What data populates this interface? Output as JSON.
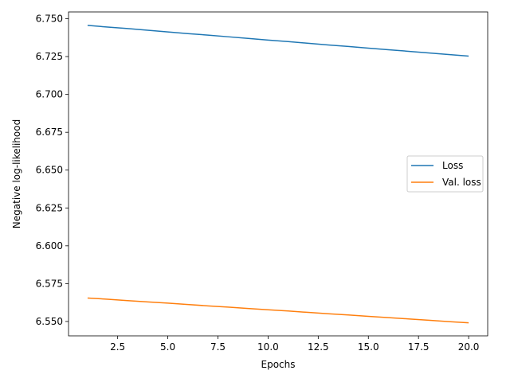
{
  "chart_data": {
    "type": "line",
    "title": "",
    "xlabel": "Epochs",
    "ylabel": "Negative log-likelihood",
    "xlim": [
      0.05,
      20.95
    ],
    "ylim": [
      6.5405,
      6.7545
    ],
    "xticks": [
      2.5,
      5.0,
      7.5,
      10.0,
      12.5,
      15.0,
      17.5,
      20.0
    ],
    "xtick_labels": [
      "2.5",
      "5.0",
      "7.5",
      "10.0",
      "12.5",
      "15.0",
      "17.5",
      "20.0"
    ],
    "yticks": [
      6.55,
      6.575,
      6.6,
      6.625,
      6.65,
      6.675,
      6.7,
      6.725,
      6.75
    ],
    "ytick_labels": [
      "6.550",
      "6.575",
      "6.600",
      "6.625",
      "6.650",
      "6.675",
      "6.700",
      "6.725",
      "6.750"
    ],
    "grid": false,
    "legend_position": "center-right",
    "series": [
      {
        "name": "Loss",
        "color": "#1f77b4",
        "x": [
          1,
          2,
          3,
          4,
          5,
          6,
          7,
          8,
          9,
          10,
          11,
          12,
          13,
          14,
          15,
          16,
          17,
          18,
          19,
          20
        ],
        "y": [
          6.7456,
          6.7445,
          6.7435,
          6.7424,
          6.7413,
          6.7402,
          6.7392,
          6.7381,
          6.737,
          6.7359,
          6.7349,
          6.7338,
          6.7327,
          6.7317,
          6.7306,
          6.7295,
          6.7285,
          6.7274,
          6.7264,
          6.7253
        ]
      },
      {
        "name": "Val. loss",
        "color": "#ff7f0e",
        "x": [
          1,
          2,
          3,
          4,
          5,
          6,
          7,
          8,
          9,
          10,
          11,
          12,
          13,
          14,
          15,
          16,
          17,
          18,
          19,
          20
        ],
        "y": [
          6.5655,
          6.5647,
          6.5638,
          6.5629,
          6.5621,
          6.5612,
          6.5603,
          6.5595,
          6.5586,
          6.5577,
          6.5569,
          6.556,
          6.5551,
          6.5543,
          6.5534,
          6.5525,
          6.5517,
          6.5508,
          6.5499,
          6.5491
        ]
      }
    ]
  }
}
